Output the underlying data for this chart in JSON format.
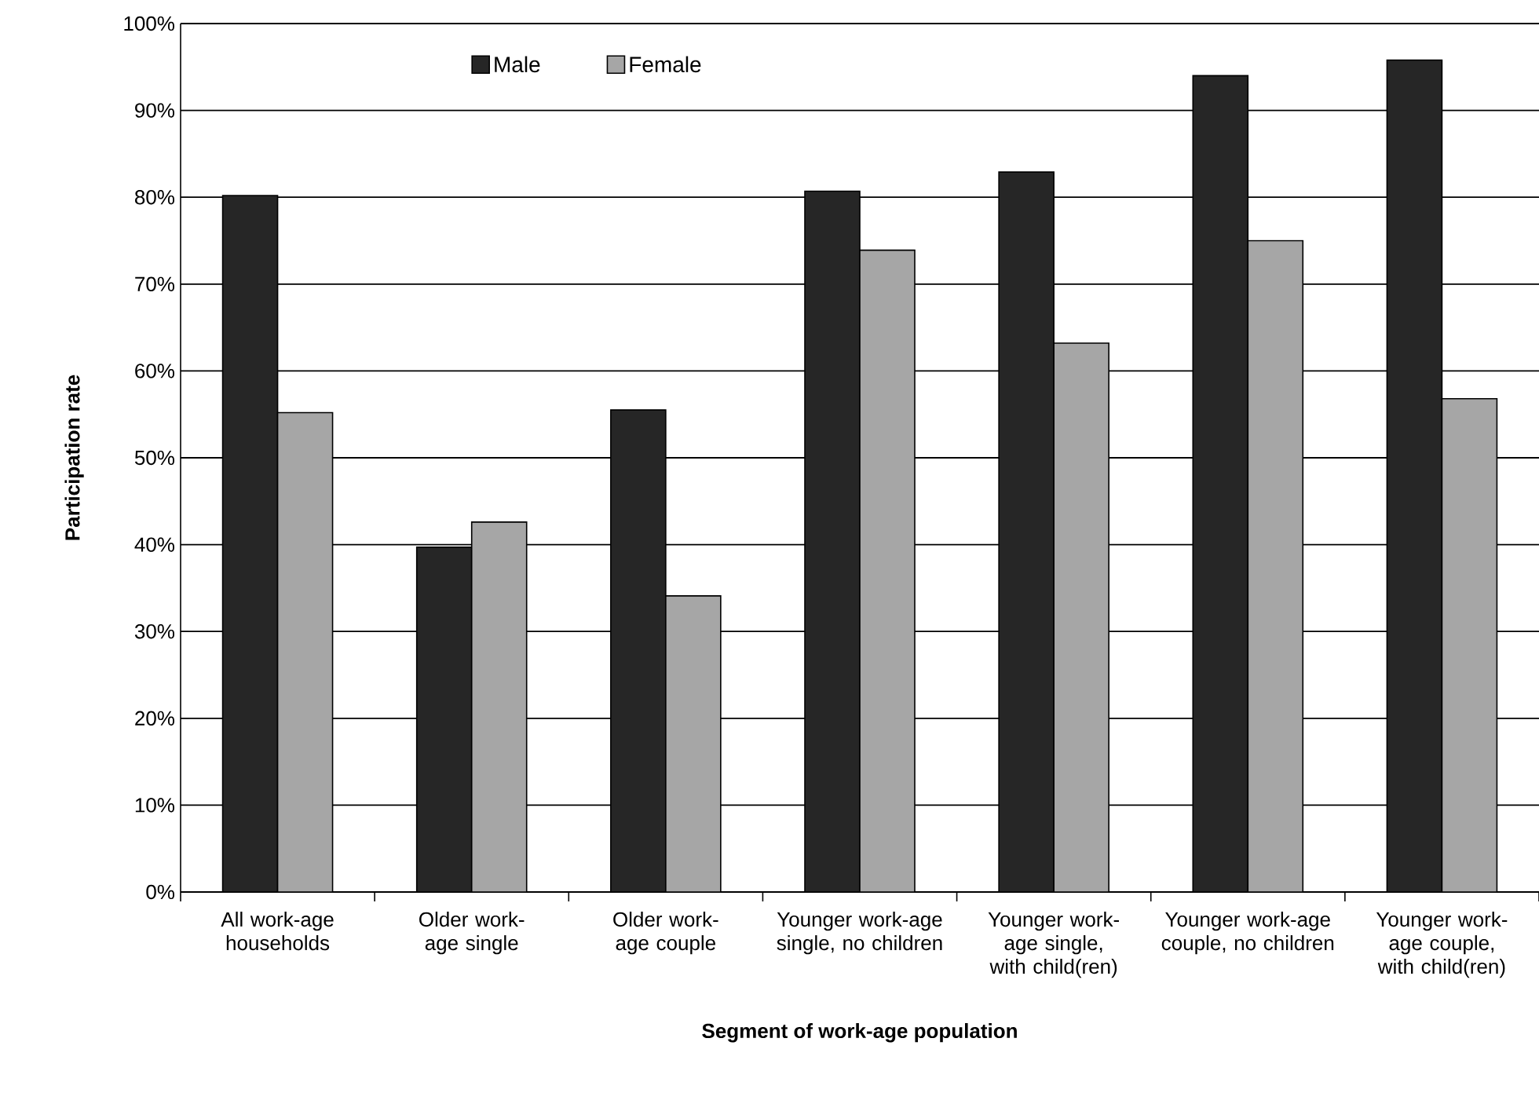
{
  "chart_data": {
    "type": "bar",
    "xlabel": "Segment of work-age population",
    "ylabel": "Participation rate",
    "categories": [
      "All work-age households",
      "Older work-age single",
      "Older work-age couple",
      "Younger work-age single, no children",
      "Younger work-age single, with child(ren)",
      "Younger work-age couple, no children",
      "Younger work-age couple, with child(ren)"
    ],
    "series": [
      {
        "name": "Male",
        "color": "#262626",
        "values": [
          80.2,
          39.7,
          55.5,
          80.7,
          82.9,
          94.0,
          95.8
        ]
      },
      {
        "name": "Female",
        "color": "#a6a6a6",
        "values": [
          55.2,
          42.6,
          34.1,
          73.9,
          63.2,
          75.0,
          56.8
        ]
      }
    ],
    "ylim": [
      0,
      100
    ],
    "yticks": [
      {
        "value": 0,
        "label": "0%"
      },
      {
        "value": 10,
        "label": "10%"
      },
      {
        "value": 20,
        "label": "20%"
      },
      {
        "value": 30,
        "label": "30%"
      },
      {
        "value": 40,
        "label": "40%"
      },
      {
        "value": 50,
        "label": "50%"
      },
      {
        "value": 60,
        "label": "60%"
      },
      {
        "value": 70,
        "label": "70%"
      },
      {
        "value": 80,
        "label": "80%"
      },
      {
        "value": 90,
        "label": "90%"
      },
      {
        "value": 100,
        "label": "100%"
      }
    ],
    "grid": "y",
    "legend": "top"
  }
}
